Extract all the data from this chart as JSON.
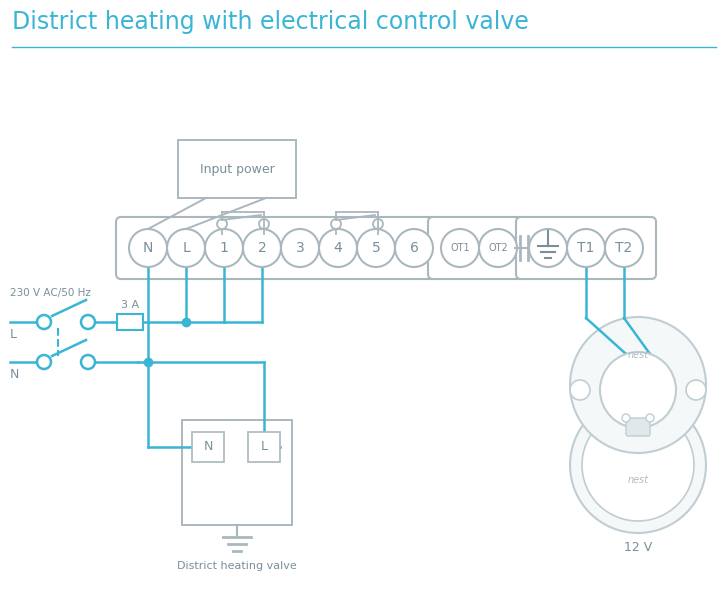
{
  "title": "District heating with electrical control valve",
  "title_color": "#3ab5d4",
  "bg_color": "#ffffff",
  "line_color": "#3ab5d4",
  "gray": "#aab8be",
  "dark_gray": "#7a8f9a",
  "voltage_label": "230 V AC/50 Hz",
  "fuse_label": "3 A",
  "L_label": "L",
  "N_label": "N",
  "valve_label": "District heating valve",
  "nest_label": "12 V",
  "input_power_label": "Input power",
  "strip1_labels": [
    "N",
    "L",
    "1",
    "2",
    "3",
    "4",
    "5",
    "6"
  ],
  "strip2_labels": [
    "OT1",
    "OT2"
  ],
  "strip3_labels": [
    "T1",
    "T2"
  ]
}
